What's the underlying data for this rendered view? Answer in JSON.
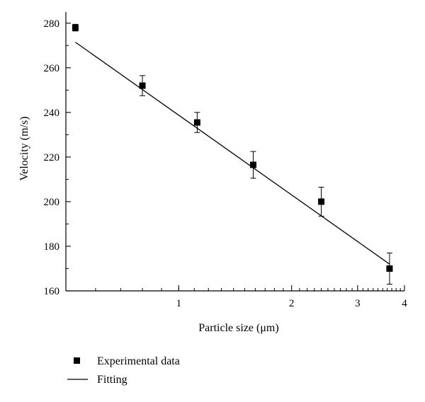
{
  "chart_data": {
    "type": "scatter",
    "xlabel": "Particle size (μm)",
    "ylabel": "Velocity (m/s)",
    "x_scale": "log",
    "xlim": [
      0.5,
      4
    ],
    "ylim": [
      160,
      285
    ],
    "x_major_ticks": [
      {
        "value": 1,
        "label": "1"
      },
      {
        "value": 2,
        "label": "2"
      },
      {
        "value": 3,
        "label": "3"
      },
      {
        "value": 4,
        "label": "4"
      }
    ],
    "y_ticks": [
      {
        "value": 160,
        "label": "160"
      },
      {
        "value": 180,
        "label": "180"
      },
      {
        "value": 200,
        "label": "200"
      },
      {
        "value": 220,
        "label": "220"
      },
      {
        "value": 240,
        "label": "240"
      },
      {
        "value": 260,
        "label": "260"
      },
      {
        "value": 280,
        "label": "280"
      }
    ],
    "grid": false,
    "legend_position": "bottom-left",
    "series": [
      {
        "name": "Experimental data",
        "kind": "scatter",
        "marker": "square",
        "points": [
          {
            "x": 0.53,
            "y": 278,
            "err": 1.5
          },
          {
            "x": 0.8,
            "y": 252,
            "err": 4.5
          },
          {
            "x": 1.12,
            "y": 235.5,
            "err": 4.5
          },
          {
            "x": 1.58,
            "y": 216.5,
            "err": 6
          },
          {
            "x": 2.4,
            "y": 200,
            "err": 6.5
          },
          {
            "x": 3.65,
            "y": 170,
            "err": 7
          }
        ]
      },
      {
        "name": "Fitting",
        "kind": "line",
        "points": [
          {
            "x": 0.53,
            "y": 271.5
          },
          {
            "x": 3.65,
            "y": 172
          }
        ]
      }
    ]
  }
}
